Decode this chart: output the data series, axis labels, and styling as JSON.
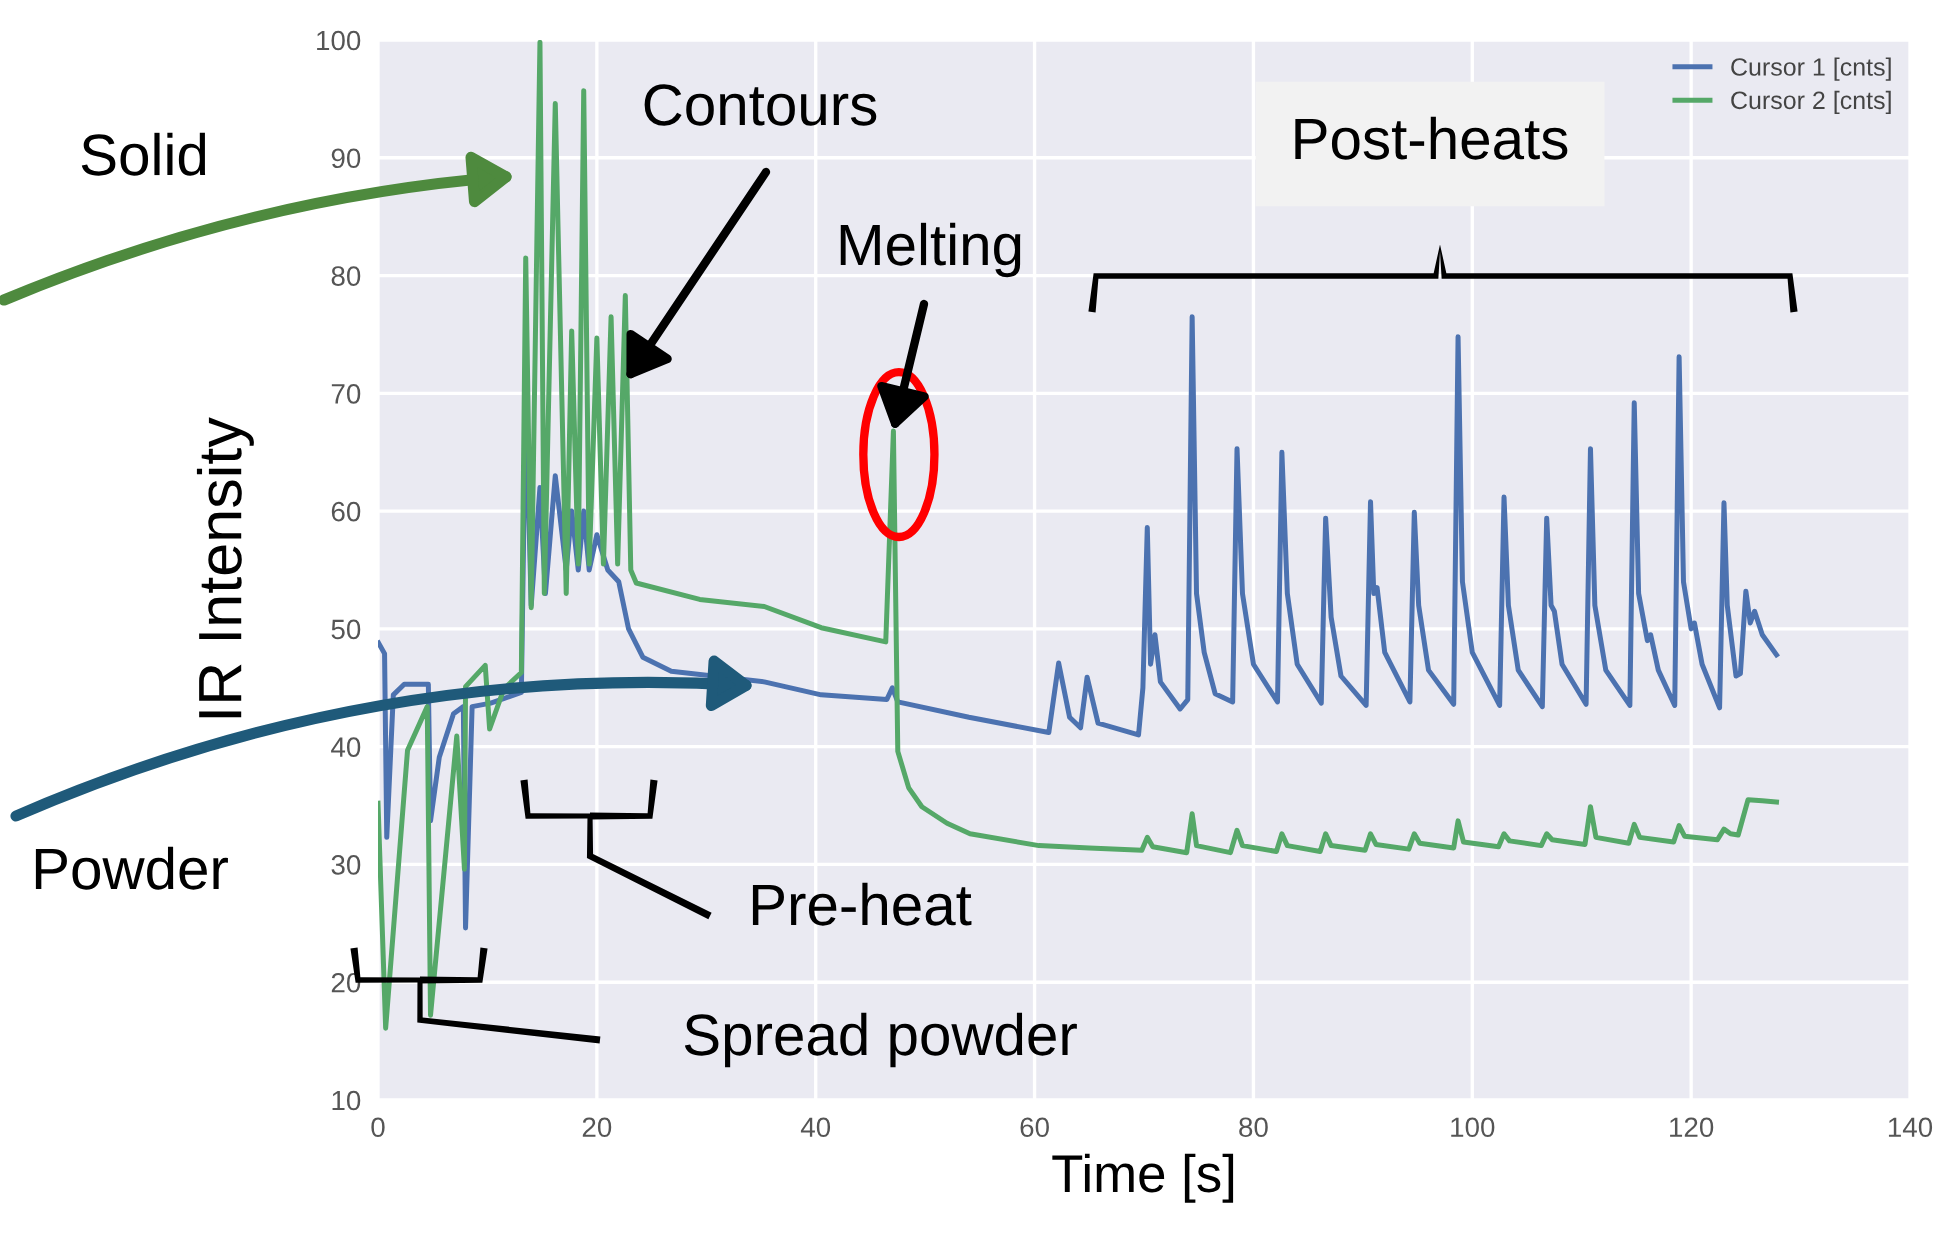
{
  "chart_data": {
    "type": "line",
    "xlabel": "Time [s]",
    "ylabel": "IR Intensity",
    "xlim": [
      0,
      140
    ],
    "xticks": [
      0,
      20,
      40,
      60,
      80,
      100,
      120,
      140
    ],
    "ylim": [
      10,
      100
    ],
    "yticks": [
      10,
      20,
      30,
      40,
      50,
      60,
      70,
      80,
      90,
      100
    ],
    "grid": true,
    "legend": "top right",
    "marker": "none",
    "line_style": "solid",
    "series": [
      {
        "name": "Cursor 1 [cnts]",
        "color": "#4c72b0",
        "x": [
          0.05,
          0.6,
          0.8,
          1.4,
          2.4,
          4.6,
          4.8,
          5.6,
          6.9,
          7.8,
          8.0,
          8.6,
          10.3,
          13.1,
          13.5,
          14.0,
          14.8,
          15.3,
          16.2,
          17.2,
          17.7,
          18.3,
          18.8,
          19.3,
          20.0,
          21.0,
          22.0,
          22.9,
          24.2,
          26.8,
          35.3,
          40.5,
          46.5,
          47.0,
          47.5,
          54,
          61.3,
          62.2,
          63.2,
          64.2,
          64.8,
          65.8,
          69.5,
          69.9,
          70.3,
          70.6,
          71.0,
          71.5,
          73.3,
          74.0,
          74.4,
          74.8,
          75.5,
          76.5,
          78.1,
          78.5,
          79.0,
          80,
          82.2,
          82.6,
          83.1,
          84,
          86.2,
          86.6,
          87.1,
          88,
          90.3,
          90.7,
          91.0,
          91.3,
          92,
          94.3,
          94.7,
          95.1,
          96,
          98.3,
          98.7,
          99.1,
          100,
          102.5,
          102.9,
          103.3,
          104.2,
          106.4,
          106.8,
          107.2,
          107.5,
          108.2,
          110.4,
          110.8,
          111.2,
          112.2,
          114.4,
          114.8,
          115.2,
          116,
          116.3,
          117,
          118.5,
          118.9,
          119.3,
          120,
          120.3,
          121,
          122.6,
          123.0,
          123.3,
          124.1,
          124.5,
          125.0,
          125.4,
          125.8,
          126.5,
          127.8
        ],
        "values": [
          48.8,
          47.9,
          32.3,
          44.4,
          45.3,
          45.3,
          33.7,
          39.1,
          42.8,
          43.4,
          24.6,
          43.4,
          43.7,
          44.6,
          70,
          52,
          62,
          53,
          63,
          55,
          60,
          55,
          60,
          55,
          58,
          55,
          54,
          50.0,
          47.6,
          46.4,
          45.5,
          44.4,
          44.0,
          45.0,
          43.8,
          42.5,
          41.2,
          47.1,
          42.5,
          41.6,
          45.9,
          42.0,
          41.0,
          45,
          58.6,
          47,
          49.5,
          45.5,
          43.2,
          44,
          76.5,
          53,
          48,
          44.5,
          43.8,
          65.3,
          53,
          47,
          43.8,
          65.0,
          53,
          47,
          43.7,
          59.4,
          51,
          46,
          43.5,
          60.8,
          53,
          53.5,
          48,
          43.8,
          59.9,
          52,
          46.5,
          43.6,
          74.8,
          54,
          48,
          43.5,
          61.2,
          52,
          46.5,
          43.4,
          59.4,
          52,
          51.5,
          47,
          43.6,
          65.3,
          52,
          46.5,
          43.5,
          69.2,
          53,
          49,
          49.5,
          46.5,
          43.5,
          73.1,
          54,
          50,
          50.5,
          47,
          43.3,
          60.7,
          52,
          46.0,
          46.2,
          53.2,
          50.5,
          51.5,
          49.5,
          47.8
        ]
      },
      {
        "name": "Cursor 2 [cnts]",
        "color": "#55a868",
        "x": [
          0.0,
          0.7,
          2.7,
          4.5,
          4.8,
          7.2,
          7.9,
          8.0,
          9.8,
          10.2,
          11.5,
          13.1,
          13.5,
          14.0,
          14.8,
          15.2,
          16.2,
          17.2,
          17.7,
          18.3,
          18.8,
          19.3,
          20.0,
          20.6,
          21.3,
          21.9,
          22.6,
          23.1,
          23.6,
          29.4,
          35.3,
          40.5,
          46.4,
          47.1,
          47.5,
          48.5,
          49.7,
          52,
          54.1,
          60.4,
          65,
          69.8,
          70.3,
          70.8,
          73.9,
          74.4,
          74.8,
          77.9,
          78.5,
          79,
          82.1,
          82.6,
          83.1,
          86.1,
          86.6,
          87.1,
          90.2,
          90.7,
          91.2,
          94.2,
          94.7,
          95.2,
          98.3,
          98.7,
          99.2,
          102.4,
          102.9,
          103.4,
          106.3,
          106.8,
          107.3,
          110.3,
          110.8,
          111.3,
          114.3,
          114.8,
          115.3,
          118.4,
          118.9,
          119.4,
          122.4,
          123.0,
          123.6,
          124.3,
          125.2,
          126.5,
          127.8
        ],
        "values": [
          35.2,
          16.1,
          39.7,
          43.4,
          17.2,
          40.9,
          29.6,
          45.1,
          46.9,
          41.5,
          44.9,
          46.3,
          81.5,
          51.8,
          99.8,
          53.0,
          94.6,
          53.0,
          75.3,
          55.5,
          95.7,
          55.5,
          74.7,
          55.5,
          76.5,
          55.5,
          78.3,
          55.0,
          53.9,
          52.5,
          51.9,
          50.1,
          48.9,
          66.8,
          39.6,
          36.5,
          34.9,
          33.5,
          32.6,
          31.6,
          31.4,
          31.2,
          32.3,
          31.5,
          31.0,
          34.3,
          31.6,
          31.0,
          32.9,
          31.6,
          31.1,
          32.6,
          31.6,
          31.1,
          32.6,
          31.6,
          31.2,
          32.6,
          31.7,
          31.3,
          32.6,
          31.8,
          31.4,
          33.7,
          31.9,
          31.5,
          32.6,
          32.0,
          31.6,
          32.6,
          32.1,
          31.7,
          34.9,
          32.3,
          31.8,
          33.4,
          32.3,
          31.9,
          33.3,
          32.4,
          32.1,
          33.0,
          32.6,
          32.5,
          35.5,
          35.4,
          35.3
        ]
      }
    ],
    "annotations": [
      "Solid",
      {
        "text": "Contours",
        "x": 22.7,
        "y": 71.1
      },
      {
        "text": "Melting",
        "x": 47.1,
        "y": 66.8
      },
      "Post-heats",
      "Powder",
      "Pre-heat",
      "Spread powder"
    ]
  }
}
